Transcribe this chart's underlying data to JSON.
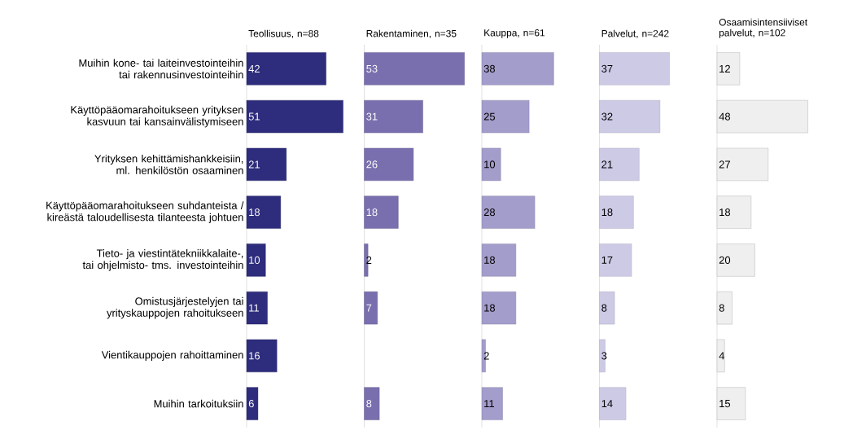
{
  "chart_data": [
    {
      "type": "bar",
      "orientation": "horizontal",
      "title": "Teollisuus, n=88",
      "categories": [
        "Muihin kone- tai laiteinvestointeihin tai rakennusinvestointeihin",
        "Käyttöpääomarahoitukseen yrityksen kasvuun tai kansainvälistymiseen",
        "Yrityksen kehittämishankkeisiin, ml. henkilöstön osaaminen",
        "Käyttöpääomarahoitukseen suhdanteista / kireästä taloudellisesta tilanteesta johtuen",
        "Tieto- ja viestintätekniikkalaite-, tai ohjelmisto- tms. investointeihin",
        "Omistusjärjestelyjen tai yrityskauppojen rahoitukseen",
        "Vientikauppojen rahoittaminen",
        "Muihin tarkoituksiin"
      ],
      "values": [
        42,
        51,
        21,
        18,
        10,
        11,
        16,
        6
      ],
      "color": "#2e2c7c",
      "data_labels": true,
      "tick_labels": "y"
    },
    {
      "type": "bar",
      "orientation": "horizontal",
      "title": "Rakentaminen, n=35",
      "categories": [
        null,
        null,
        null,
        null,
        null,
        null,
        null,
        null
      ],
      "values": [
        53,
        31,
        26,
        18,
        2,
        7,
        null,
        8
      ],
      "color": "#7a6fae",
      "data_labels": true,
      "tick_labels": false
    },
    {
      "type": "bar",
      "orientation": "horizontal",
      "title": "Kauppa, n=61",
      "categories": [
        null,
        null,
        null,
        null,
        null,
        null,
        null,
        null
      ],
      "values": [
        38,
        25,
        10,
        28,
        18,
        18,
        2,
        11
      ],
      "color": "#a39dcb",
      "data_labels": true,
      "tick_labels": false
    },
    {
      "type": "bar",
      "orientation": "horizontal",
      "title": "Palvelut, n=242",
      "categories": [
        null,
        null,
        null,
        null,
        null,
        null,
        null,
        null
      ],
      "values": [
        37,
        32,
        21,
        18,
        17,
        8,
        3,
        14
      ],
      "color": "#cdcae6",
      "data_labels": true,
      "tick_labels": false
    },
    {
      "type": "bar",
      "orientation": "horizontal",
      "title": "Osaamisintensiiviset palvelut, n=102",
      "categories": [
        null,
        null,
        null,
        null,
        null,
        null,
        null,
        null
      ],
      "values": [
        12,
        48,
        27,
        18,
        20,
        8,
        4,
        15
      ],
      "color": "#efefef",
      "data_labels": true,
      "tick_labels": false
    }
  ]
}
